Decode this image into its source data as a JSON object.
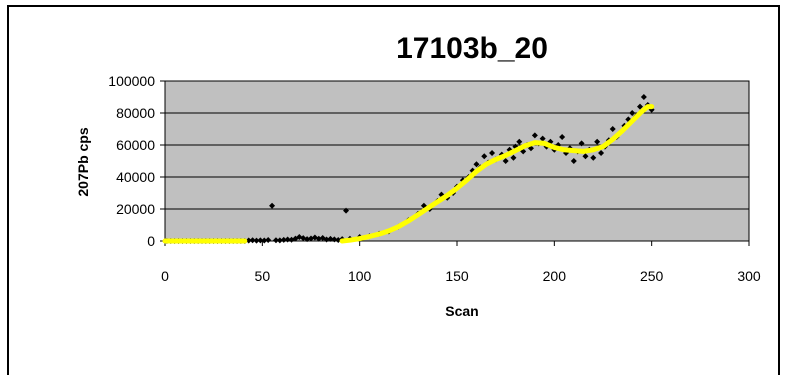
{
  "chart_data": {
    "type": "scatter",
    "title": "17103b_20",
    "xlabel": "Scan",
    "ylabel": "207Pb cps",
    "xlim": [
      0,
      300
    ],
    "ylim": [
      0,
      100000
    ],
    "x_ticks": [
      "0",
      "50",
      "100",
      "150",
      "200",
      "250",
      "300"
    ],
    "y_ticks": [
      "0",
      "20000",
      "40000",
      "60000",
      "80000",
      "100000"
    ],
    "grid": "horizontal",
    "plot_background": "#c0c0c0",
    "series": [
      {
        "color": "#000000",
        "marker": "diamond",
        "points": [
          [
            1,
            0
          ],
          [
            3,
            0
          ],
          [
            5,
            0
          ],
          [
            7,
            0
          ],
          [
            9,
            0
          ],
          [
            11,
            0
          ],
          [
            13,
            0
          ],
          [
            15,
            0
          ],
          [
            17,
            0
          ],
          [
            19,
            0
          ],
          [
            21,
            0
          ],
          [
            23,
            0
          ],
          [
            25,
            0
          ],
          [
            27,
            0
          ],
          [
            29,
            0
          ],
          [
            31,
            0
          ],
          [
            33,
            0
          ],
          [
            35,
            0
          ],
          [
            37,
            0
          ],
          [
            39,
            0
          ],
          [
            41,
            0
          ],
          [
            43,
            300
          ],
          [
            45,
            500
          ],
          [
            47,
            200
          ],
          [
            49,
            400
          ],
          [
            51,
            300
          ],
          [
            53,
            600
          ],
          [
            55,
            22000
          ],
          [
            57,
            500
          ],
          [
            59,
            400
          ],
          [
            61,
            700
          ],
          [
            63,
            900
          ],
          [
            65,
            800
          ],
          [
            67,
            1500
          ],
          [
            69,
            2500
          ],
          [
            71,
            1800
          ],
          [
            73,
            1200
          ],
          [
            75,
            1600
          ],
          [
            77,
            2200
          ],
          [
            79,
            1400
          ],
          [
            81,
            1900
          ],
          [
            83,
            900
          ],
          [
            85,
            1300
          ],
          [
            87,
            1000
          ],
          [
            89,
            600
          ],
          [
            91,
            1200
          ],
          [
            93,
            19000
          ],
          [
            95,
            1400
          ],
          [
            100,
            2500
          ],
          [
            105,
            3000
          ],
          [
            110,
            4500
          ],
          [
            115,
            6000
          ],
          [
            120,
            9000
          ],
          [
            125,
            13000
          ],
          [
            130,
            17000
          ],
          [
            133,
            22000
          ],
          [
            136,
            20000
          ],
          [
            140,
            25000
          ],
          [
            142,
            29000
          ],
          [
            145,
            27000
          ],
          [
            148,
            30000
          ],
          [
            150,
            34000
          ],
          [
            153,
            38000
          ],
          [
            156,
            40000
          ],
          [
            158,
            44000
          ],
          [
            160,
            48000
          ],
          [
            162,
            46000
          ],
          [
            164,
            53000
          ],
          [
            166,
            49000
          ],
          [
            168,
            55000
          ],
          [
            170,
            51000
          ],
          [
            173,
            54000
          ],
          [
            175,
            50000
          ],
          [
            177,
            57000
          ],
          [
            179,
            52000
          ],
          [
            180,
            59000
          ],
          [
            182,
            62000
          ],
          [
            184,
            56000
          ],
          [
            186,
            60000
          ],
          [
            188,
            58000
          ],
          [
            190,
            66000
          ],
          [
            192,
            61000
          ],
          [
            194,
            64000
          ],
          [
            196,
            59000
          ],
          [
            198,
            62000
          ],
          [
            200,
            57000
          ],
          [
            202,
            60000
          ],
          [
            204,
            65000
          ],
          [
            206,
            55000
          ],
          [
            208,
            58000
          ],
          [
            210,
            50000
          ],
          [
            212,
            56000
          ],
          [
            214,
            61000
          ],
          [
            216,
            53000
          ],
          [
            218,
            57000
          ],
          [
            220,
            52000
          ],
          [
            222,
            62000
          ],
          [
            224,
            55000
          ],
          [
            226,
            59000
          ],
          [
            228,
            63000
          ],
          [
            230,
            70000
          ],
          [
            232,
            65000
          ],
          [
            234,
            68000
          ],
          [
            236,
            72000
          ],
          [
            238,
            76000
          ],
          [
            240,
            80000
          ],
          [
            242,
            78000
          ],
          [
            244,
            84000
          ],
          [
            246,
            90000
          ],
          [
            248,
            85000
          ],
          [
            250,
            82000
          ]
        ]
      },
      {
        "color": "#ffff00",
        "marker": "line",
        "points": [
          [
            0,
            0
          ],
          [
            5,
            0
          ],
          [
            10,
            0
          ],
          [
            15,
            0
          ],
          [
            20,
            0
          ],
          [
            25,
            0
          ],
          [
            30,
            0
          ],
          [
            35,
            0
          ],
          [
            40,
            0
          ],
          [
            41,
            0
          ],
          [
            91,
            0
          ],
          [
            95,
            500
          ],
          [
            100,
            1500
          ],
          [
            105,
            2800
          ],
          [
            110,
            4300
          ],
          [
            115,
            6300
          ],
          [
            120,
            9000
          ],
          [
            125,
            12500
          ],
          [
            130,
            16500
          ],
          [
            135,
            20500
          ],
          [
            140,
            24500
          ],
          [
            145,
            28500
          ],
          [
            150,
            33000
          ],
          [
            155,
            38000
          ],
          [
            160,
            43500
          ],
          [
            165,
            48000
          ],
          [
            170,
            51000
          ],
          [
            175,
            53500
          ],
          [
            180,
            56500
          ],
          [
            185,
            59500
          ],
          [
            190,
            61500
          ],
          [
            195,
            61000
          ],
          [
            200,
            58500
          ],
          [
            205,
            57000
          ],
          [
            210,
            56500
          ],
          [
            215,
            56000
          ],
          [
            220,
            57000
          ],
          [
            225,
            59000
          ],
          [
            230,
            63500
          ],
          [
            235,
            69000
          ],
          [
            240,
            75000
          ],
          [
            245,
            81000
          ],
          [
            248,
            84000
          ],
          [
            250,
            84000
          ]
        ]
      }
    ]
  }
}
